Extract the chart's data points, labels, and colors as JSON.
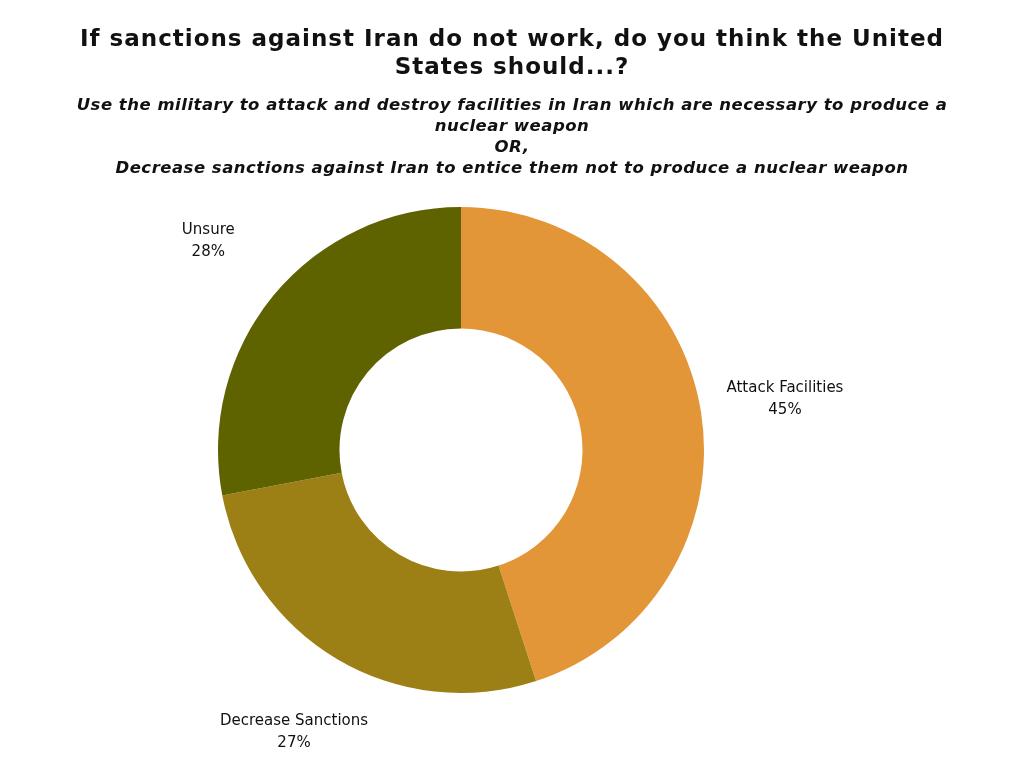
{
  "chart_data": {
    "type": "donut",
    "title": "If sanctions against Iran do not work, do you think the United States should...?",
    "subtitle": "Use the military to attack and destroy facilities in Iran which are necessary to produce a nuclear weapon\nOR,\nDecrease sanctions against Iran to entice them not to produce a nuclear weapon",
    "categories": [
      "Attack Facilities",
      "Decrease Sanctions",
      "Unsure"
    ],
    "values": [
      45,
      27,
      28
    ],
    "value_labels": [
      "45%",
      "27%",
      "28%"
    ],
    "colors": [
      "#e39638",
      "#9c8015",
      "#5e6300"
    ],
    "legend": false
  }
}
